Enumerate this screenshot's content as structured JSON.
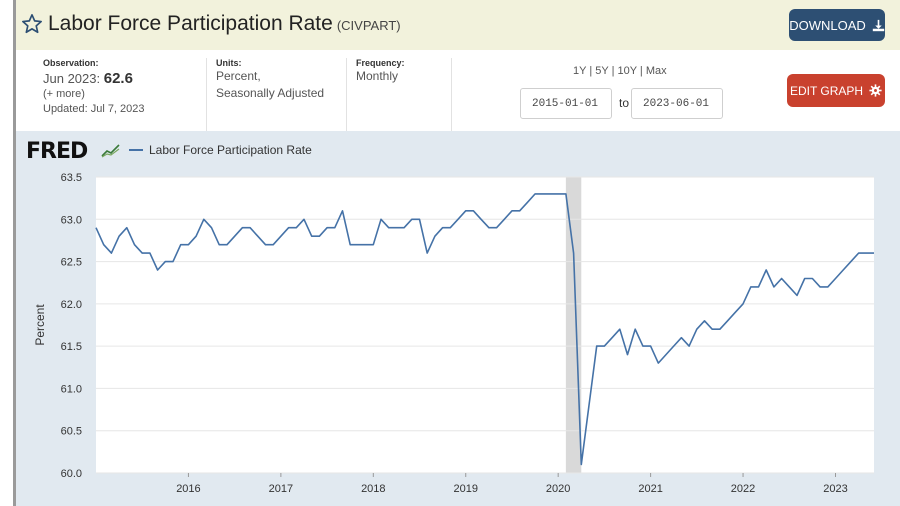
{
  "header": {
    "title": "Labor Force Participation Rate",
    "series_code": "(CIVPART)",
    "download_label": "DOWNLOAD"
  },
  "meta": {
    "observation_label": "Observation:",
    "observation_period": "Jun 2023:",
    "observation_value": "62.6",
    "more": "(+ more)",
    "updated": "Updated: Jul 7, 2023",
    "units_label": "Units:",
    "units_line1": "Percent,",
    "units_line2": "Seasonally Adjusted",
    "frequency_label": "Frequency:",
    "frequency_value": "Monthly"
  },
  "range": {
    "links": [
      "1Y",
      "5Y",
      "10Y",
      "Max"
    ],
    "start": "2015-01-01",
    "to_label": "to",
    "end": "2023-06-01"
  },
  "edit_label": "EDIT GRAPH",
  "logo": {
    "text": "FRED"
  },
  "colors": {
    "line": "#4572a7",
    "header_bg": "#f2f2dc",
    "download": "#2d4f73",
    "edit": "#c9412e",
    "chart_bg": "#e1e9f0",
    "recession": "#d9d9d9"
  },
  "chart_data": {
    "type": "line",
    "ylabel": "Percent",
    "ylim": [
      60.0,
      63.5
    ],
    "yticks": [
      "63.5",
      "63.0",
      "62.5",
      "62.0",
      "61.5",
      "61.0",
      "60.5",
      "60.0"
    ],
    "xlim": [
      "2015-01",
      "2023-06"
    ],
    "xticks": [
      "2016",
      "2017",
      "2018",
      "2019",
      "2020",
      "2021",
      "2022",
      "2023"
    ],
    "grid": true,
    "legend": "top-left",
    "recession": [
      "2020-02",
      "2020-04"
    ],
    "series": [
      {
        "name": "Labor Force Participation Rate",
        "start": "2015-01",
        "values": [
          62.9,
          62.7,
          62.6,
          62.8,
          62.9,
          62.7,
          62.6,
          62.6,
          62.4,
          62.5,
          62.5,
          62.7,
          62.7,
          62.8,
          63.0,
          62.9,
          62.7,
          62.7,
          62.8,
          62.9,
          62.9,
          62.8,
          62.7,
          62.7,
          62.8,
          62.9,
          62.9,
          63.0,
          62.8,
          62.8,
          62.9,
          62.9,
          63.1,
          62.7,
          62.7,
          62.7,
          62.7,
          63.0,
          62.9,
          62.9,
          62.9,
          63.0,
          63.0,
          62.6,
          62.8,
          62.9,
          62.9,
          63.0,
          63.1,
          63.1,
          63.0,
          62.9,
          62.9,
          63.0,
          63.1,
          63.1,
          63.2,
          63.3,
          63.3,
          63.3,
          63.3,
          63.3,
          62.6,
          60.1,
          60.8,
          61.5,
          61.5,
          61.6,
          61.7,
          61.4,
          61.7,
          61.5,
          61.5,
          61.3,
          61.4,
          61.5,
          61.6,
          61.5,
          61.7,
          61.8,
          61.7,
          61.7,
          61.8,
          61.9,
          62.0,
          62.2,
          62.2,
          62.4,
          62.2,
          62.3,
          62.2,
          62.1,
          62.3,
          62.3,
          62.2,
          62.2,
          62.3,
          62.4,
          62.5,
          62.6,
          62.6,
          62.6
        ]
      }
    ]
  }
}
